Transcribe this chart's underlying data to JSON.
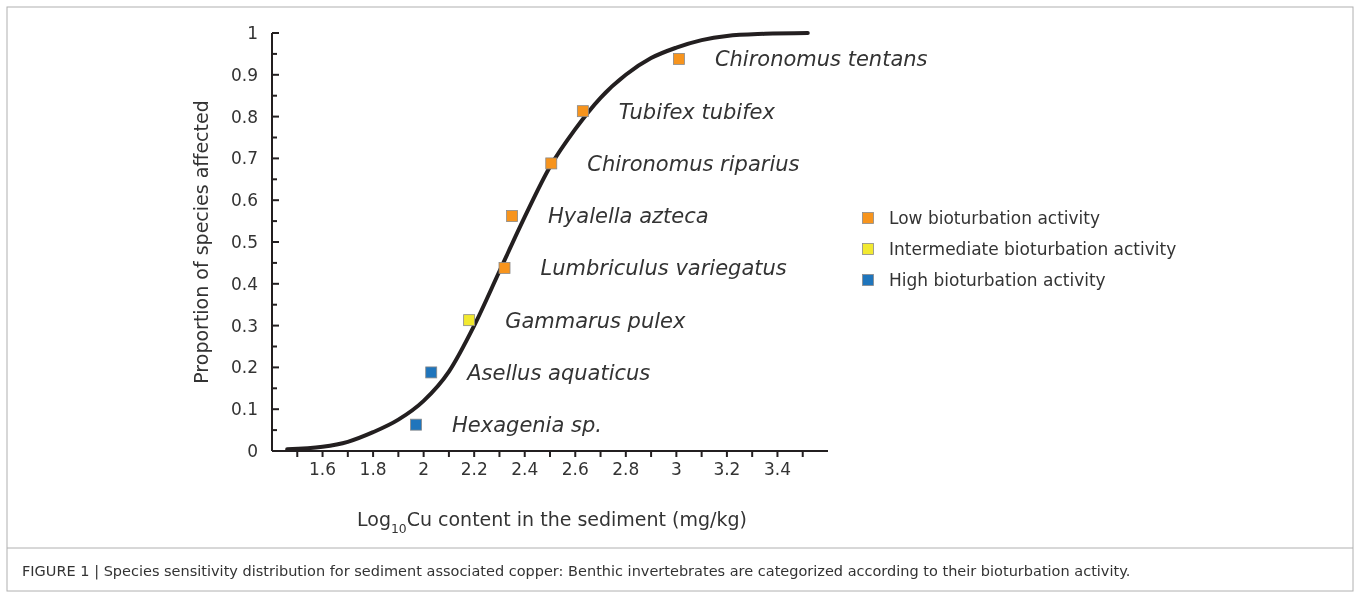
{
  "chart_data": {
    "type": "scatter",
    "xlabel": "Log$_{10}$Cu content in the sediment (mg/kg)",
    "ylabel": "Proportion of species affected",
    "xlim": [
      1.4,
      3.6
    ],
    "xticks": [
      {
        "value": 1.5,
        "label": null
      },
      1.6,
      {
        "value": 1.7,
        "label": null
      },
      1.8,
      {
        "value": 1.9,
        "label": null
      },
      2,
      {
        "value": 2.1,
        "label": null
      },
      2.2,
      {
        "value": 2.3,
        "label": null
      },
      2.4,
      {
        "value": 2.5,
        "label": null
      },
      2.6,
      {
        "value": 2.7,
        "label": null
      },
      2.8,
      {
        "value": 2.9,
        "label": null
      },
      3,
      {
        "value": 3.1,
        "label": null
      },
      3.2,
      {
        "value": 3.3,
        "label": null
      },
      3.4,
      {
        "value": 3.5,
        "label": null
      }
    ],
    "ylim": [
      0,
      1
    ],
    "yticks": [
      0,
      {
        "value": 0.05,
        "label": null
      },
      0.1,
      {
        "value": 0.15,
        "label": null
      },
      0.2,
      {
        "value": 0.25,
        "label": null
      },
      0.3,
      {
        "value": 0.35,
        "label": null
      },
      0.4,
      {
        "value": 0.45,
        "label": null
      },
      0.5,
      {
        "value": 0.55,
        "label": null
      },
      0.6,
      {
        "value": 0.65,
        "label": null
      },
      0.7,
      {
        "value": 0.75,
        "label": null
      },
      0.8,
      {
        "value": 0.85,
        "label": null
      },
      0.9,
      {
        "value": 0.95,
        "label": null
      },
      1
    ],
    "legend": "right",
    "grid": false,
    "series": [
      {
        "type": "line",
        "marker": "none",
        "color": "#231f20",
        "x": [
          1.46,
          1.6,
          1.7,
          1.8,
          1.9,
          2.0,
          2.1,
          2.2,
          2.3,
          2.4,
          2.5,
          2.6,
          2.7,
          2.8,
          2.9,
          3.0,
          3.1,
          3.2,
          3.35,
          3.52
        ],
        "values": [
          0.004,
          0.01,
          0.022,
          0.045,
          0.075,
          0.12,
          0.19,
          0.3,
          0.43,
          0.56,
          0.68,
          0.77,
          0.845,
          0.9,
          0.94,
          0.965,
          0.983,
          0.993,
          0.998,
          1.0
        ]
      },
      {
        "name": "Low bioturbation activity",
        "marker": "square",
        "color": "#f7941d",
        "x": [
          2.32,
          2.35,
          2.505,
          2.63,
          3.01
        ],
        "values": [
          0.438,
          0.562,
          0.688,
          0.813,
          0.938
        ]
      },
      {
        "name": "Intermediate bioturbation activity",
        "marker": "square",
        "color": "#f2e930",
        "x": [
          2.18
        ],
        "values": [
          0.313
        ]
      },
      {
        "name": "High bioturbation activity",
        "marker": "square",
        "color": "#1f75bc",
        "x": [
          1.97,
          2.03
        ],
        "values": [
          0.063,
          0.188
        ]
      }
    ],
    "annotations": [
      {
        "text": "Hexagenia sp.",
        "x": 1.97,
        "y": 0.063
      },
      {
        "text": "Asellus aquaticus",
        "x": 2.03,
        "y": 0.188
      },
      {
        "text": "Gammarus pulex",
        "x": 2.18,
        "y": 0.313
      },
      {
        "text": "Lumbriculus variegatus",
        "x": 2.32,
        "y": 0.438
      },
      {
        "text": "Hyalella azteca",
        "x": 2.35,
        "y": 0.562
      },
      {
        "text": "Chironomus riparius",
        "x": 2.505,
        "y": 0.688
      },
      {
        "text": "Tubifex tubifex",
        "x": 2.63,
        "y": 0.813
      },
      {
        "text": "Chironomus tentans",
        "x": 3.01,
        "y": 0.938
      },
      "FIGURE 1 | Species sensitivity distribution for sediment associated copper: Benthic invertebrates are categorized according to their bioturbation activity."
    ]
  }
}
